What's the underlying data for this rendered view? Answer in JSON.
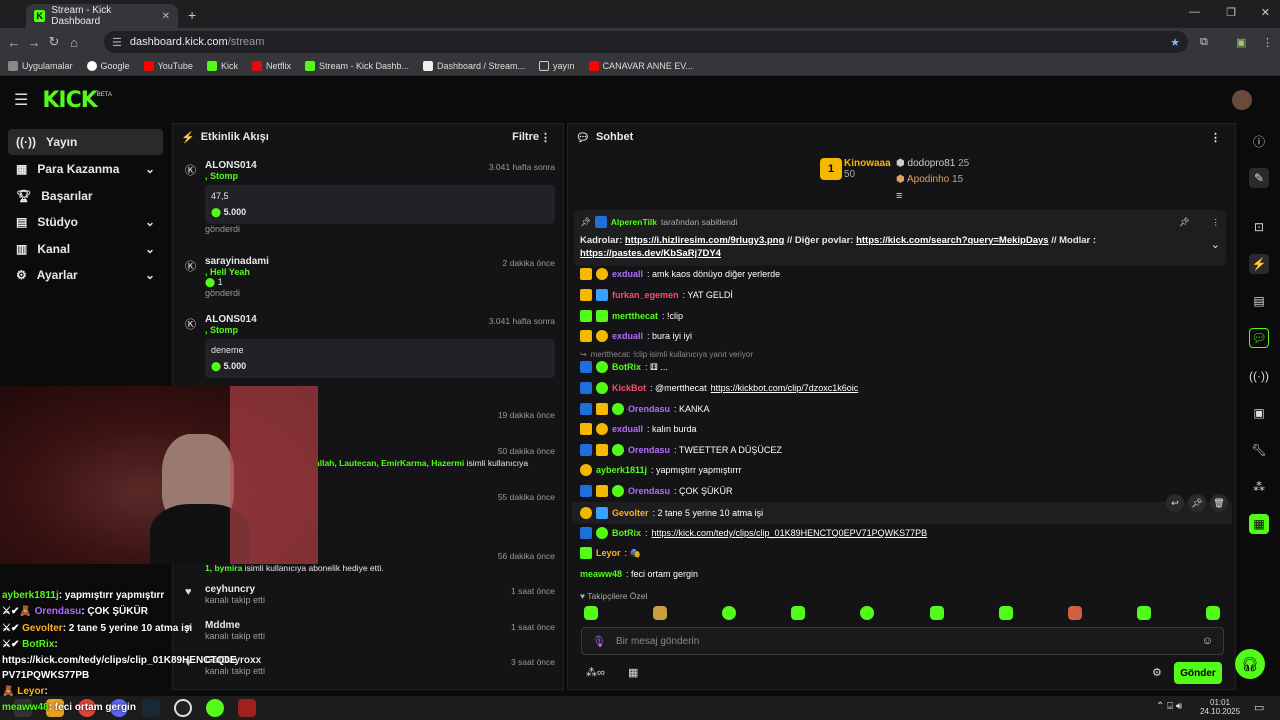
{
  "browser": {
    "tab_title": "Stream - Kick Dashboard",
    "url_host": "dashboard.kick.com",
    "url_path": "/stream",
    "bookmarks": [
      "Uygulamalar",
      "Google",
      "YouTube",
      "Kick",
      "Netflix",
      "Stream - Kick Dashb...",
      "Dashboard / Stream...",
      "yayın",
      "CANAVAR ANNE EV..."
    ]
  },
  "header": {
    "logo": "KICK",
    "beta": "BETA"
  },
  "sidebar": {
    "items": [
      {
        "label": "Yayın",
        "icon": "broadcast-icon"
      },
      {
        "label": "Para Kazanma",
        "icon": "money-icon"
      },
      {
        "label": "Başarılar",
        "icon": "trophy-icon"
      },
      {
        "label": "Stüdyo",
        "icon": "studio-icon"
      },
      {
        "label": "Kanal",
        "icon": "channel-icon"
      },
      {
        "label": "Ayarlar",
        "icon": "gear-icon"
      }
    ]
  },
  "activity": {
    "title": "Etkinlik Akışı",
    "filter": "Filtre",
    "items": [
      {
        "name": "ALONS014",
        "tier": ", Stomp",
        "time": "3.041 hafta sonra",
        "box_title": "47,5",
        "amount": "5.000",
        "note": "gönderdi"
      },
      {
        "name": "sarayinadami",
        "tier": ", Hell Yeah",
        "time": "2 dakika önce",
        "amount": "1",
        "note": "gönderdi"
      },
      {
        "name": "ALONS014",
        "tier": ", Stomp",
        "time": "3.041 hafta sonra",
        "box_title": "deneme",
        "amount": "5.000"
      },
      {
        "time": "19 dakika önce"
      },
      {
        "time": "50 dakika önce",
        "names": "allah, Lautecan, EmirKarma, Hazermi",
        "suffix": "isimli kullanıcıya"
      },
      {
        "time": "55 dakika önce"
      },
      {
        "time": "56 dakika önce",
        "names": "1, bymira",
        "suffix": "isimli kullanıcıya abonelik hediye etti."
      },
      {
        "name": "ceyhuncry",
        "time": "1 saat önce",
        "note": "kanalı takip etti"
      },
      {
        "name": "Mddme",
        "time": "1 saat önce",
        "note": "kanalı takip etti"
      },
      {
        "name": "GatDayroxx",
        "time": "3 saat önce",
        "note": "kanalı takip etti"
      }
    ]
  },
  "chat": {
    "title": "Sohbet",
    "leaderboard": [
      {
        "name": "Kinowaaa",
        "value": "50"
      },
      {
        "name": "dodopro81",
        "value": "25"
      },
      {
        "name": "Apodinho",
        "value": "15"
      }
    ],
    "pinned": {
      "by": "AlperenTilk",
      "by_suffix": "tarafından sabitlendi",
      "prefix": "Kadrolar:",
      "link1": "https://i.hizliresim.com/9rlugy3.png",
      "mid": "// Diğer povlar:",
      "link2": "https://kick.com/search?query=MekipDays",
      "mid2": "// Modlar :",
      "link3": "https://pastes.dev/KbSaRj7DY4"
    },
    "messages": [
      {
        "user": "exduall",
        "color": "#b16cff",
        "text": ": amk kaos dönüyo diğer yerlerde"
      },
      {
        "user": "furkan_egemen",
        "color": "#ff4b6b",
        "text": ": YAT GELDİ"
      },
      {
        "user": "mertthecat",
        "color": "#53fc18",
        "text": ": !clip"
      },
      {
        "user": "exduall",
        "color": "#b16cff",
        "text": ": bura iyi iyi"
      },
      {
        "reply": "mertthecat: !clip isimli kullanıcıya yanıt veriyor"
      },
      {
        "user": "BotRix",
        "color": "#53fc18",
        "text": ": ⚅ ..."
      },
      {
        "user": "KickBot",
        "color": "#ff4b6b",
        "text": ": @mertthecat ",
        "link": "https://kickbot.com/clip/7dzoxc1k6oic"
      },
      {
        "user": "Orendasu",
        "color": "#b16cff",
        "text": ": KANKA"
      },
      {
        "user": "exduall",
        "color": "#b16cff",
        "text": ": kalın burda"
      },
      {
        "user": "Orendasu",
        "color": "#b16cff",
        "text": ": TWEETTER A DÜŞÜCEZ"
      },
      {
        "user": "ayberk1811j",
        "color": "#53fc18",
        "text": ": yapmıştırr yapmıştırrr"
      },
      {
        "user": "Orendasu",
        "color": "#b16cff",
        "text": ": ÇOK ŞÜKÜR"
      },
      {
        "user": "Gevolter",
        "color": "#ffb020",
        "text": ": 2 tane 5 yerine 10 atma işi"
      },
      {
        "user": "BotRix",
        "color": "#53fc18",
        "text": ": ",
        "link": "https://kick.com/tedy/clips/clip_01K89HENCTQ0EPV71PQWKS77PB"
      },
      {
        "user": "Leyor",
        "color": "#ffb020",
        "text": ": 🎭"
      },
      {
        "user": "meaww48",
        "color": "#53fc18",
        "text": ": feci ortam gergin"
      }
    ],
    "emote_label": "Takipçilere Özel",
    "input_placeholder": "Bir mesaj gönderin",
    "send_label": "Gönder"
  },
  "overlay_chat": [
    {
      "user": "ayberk1811j",
      "text": ": yapmıştırr yapmıştırr"
    },
    {
      "user": "Orendasu",
      "text": ": ÇOK ŞÜKÜR"
    },
    {
      "user": "Gevolter",
      "text": ": 2 tane 5 yerine 10 atma işi"
    },
    {
      "user": "BotRix",
      "text": ":"
    },
    {
      "user": "",
      "text": "https://kick.com/tedy/clips/clip_01K89HENCTQ0E"
    },
    {
      "user": "",
      "text": "PV71PQWKS77PB"
    },
    {
      "user": "Leyor",
      "text": ":"
    },
    {
      "user": "meaww48",
      "text": ": feci ortam gergin"
    }
  ],
  "taskbar": {
    "time": "01:01",
    "date": "24.10.2025"
  },
  "colors": {
    "accent": "#53fc18",
    "bg": "#0b0b0c",
    "panel": "#141416"
  }
}
